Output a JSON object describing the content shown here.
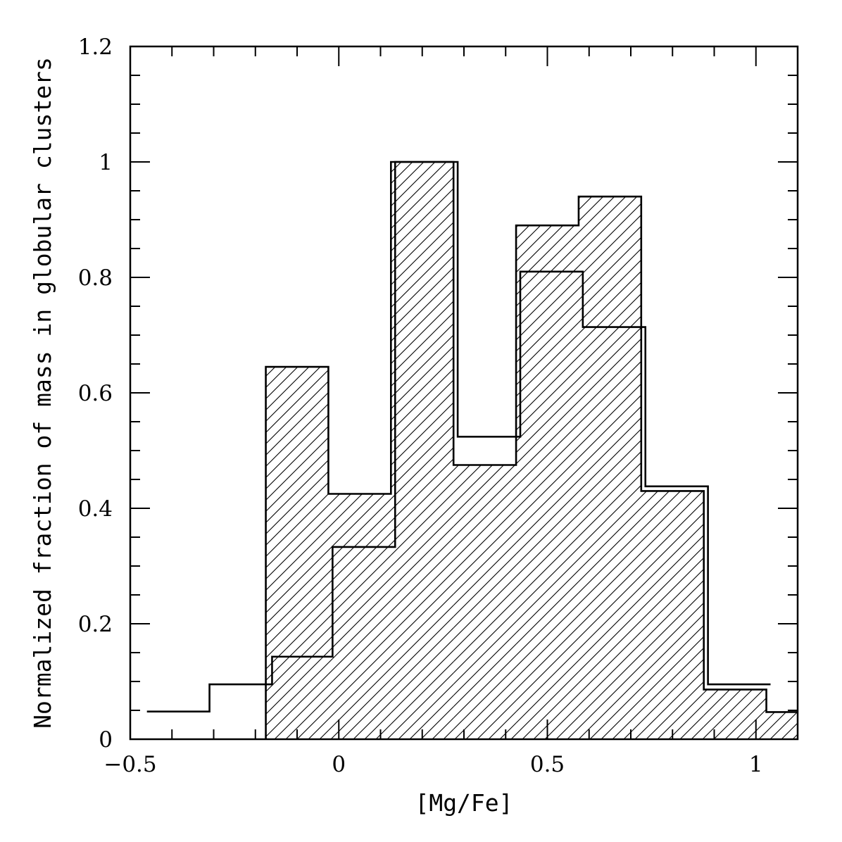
{
  "chart_data": {
    "type": "histogram",
    "xlabel": "[Mg/Fe]",
    "ylabel": "Normalized fraction of mass in globular clusters",
    "xlim": [
      -0.5,
      1.1
    ],
    "ylim": [
      0,
      1.2
    ],
    "x_ticks": [
      {
        "value": -0.5,
        "label": "−0.5"
      },
      {
        "value": 0,
        "label": "0"
      },
      {
        "value": 0.5,
        "label": "0.5"
      },
      {
        "value": 1,
        "label": "1"
      }
    ],
    "y_ticks": [
      {
        "value": 0,
        "label": "0"
      },
      {
        "value": 0.2,
        "label": "0.2"
      },
      {
        "value": 0.4,
        "label": "0.4"
      },
      {
        "value": 0.6,
        "label": "0.6"
      },
      {
        "value": 0.8,
        "label": "0.8"
      },
      {
        "value": 1,
        "label": "1"
      },
      {
        "value": 1.2,
        "label": "1.2"
      }
    ],
    "x_minor_step": 0.1,
    "y_minor_step": 0.05,
    "grid": false,
    "series": [
      {
        "style": "hatched",
        "bins": [
          {
            "x0": -0.175,
            "x1": -0.025,
            "value": 0.645
          },
          {
            "x0": -0.025,
            "x1": 0.125,
            "value": 0.425
          },
          {
            "x0": 0.125,
            "x1": 0.275,
            "value": 1.0
          },
          {
            "x0": 0.275,
            "x1": 0.425,
            "value": 0.475
          },
          {
            "x0": 0.425,
            "x1": 0.575,
            "value": 0.89
          },
          {
            "x0": 0.575,
            "x1": 0.725,
            "value": 0.94
          },
          {
            "x0": 0.725,
            "x1": 0.875,
            "value": 0.43
          },
          {
            "x0": 0.875,
            "x1": 1.025,
            "value": 0.086
          },
          {
            "x0": 1.025,
            "x1": 1.175,
            "value": 0.047
          }
        ]
      },
      {
        "style": "outline",
        "bins": [
          {
            "x0": -0.46,
            "x1": -0.31,
            "value": 0.048
          },
          {
            "x0": -0.31,
            "x1": -0.16,
            "value": 0.095
          },
          {
            "x0": -0.16,
            "x1": -0.015,
            "value": 0.143
          },
          {
            "x0": -0.015,
            "x1": 0.135,
            "value": 0.333
          },
          {
            "x0": 0.135,
            "x1": 0.285,
            "value": 1.0
          },
          {
            "x0": 0.285,
            "x1": 0.435,
            "value": 0.524
          },
          {
            "x0": 0.435,
            "x1": 0.585,
            "value": 0.81
          },
          {
            "x0": 0.585,
            "x1": 0.735,
            "value": 0.714
          },
          {
            "x0": 0.735,
            "x1": 0.885,
            "value": 0.438
          },
          {
            "x0": 0.885,
            "x1": 1.035,
            "value": 0.095
          }
        ]
      }
    ]
  }
}
